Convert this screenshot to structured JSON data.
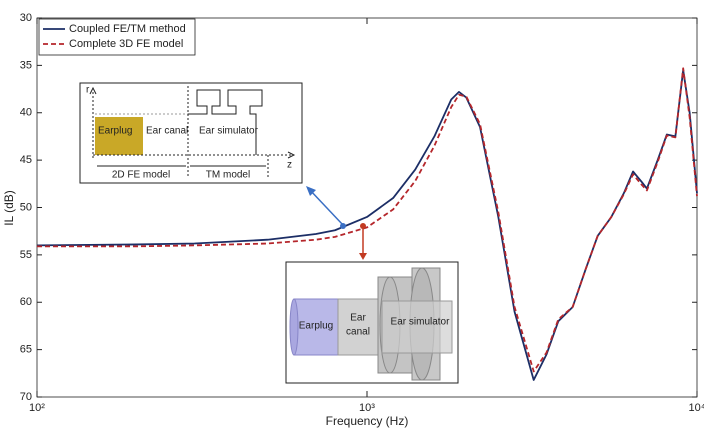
{
  "chart_data": {
    "type": "line",
    "xlabel": "Frequency (Hz)",
    "ylabel": "IL (dB)",
    "x_log": true,
    "y_reversed": true,
    "xlim": [
      100,
      10000
    ],
    "xticks": [
      {
        "value": 100,
        "label": "10²"
      },
      {
        "value": 1000,
        "label": "10³"
      },
      {
        "value": 10000,
        "label": "10⁴"
      }
    ],
    "ylim": [
      30,
      70
    ],
    "yticks": [
      30,
      35,
      40,
      45,
      50,
      55,
      60,
      65,
      70
    ],
    "legend": "upper left",
    "x": [
      100,
      200,
      300,
      500,
      700,
      800,
      1000,
      1200,
      1400,
      1600,
      1800,
      1900,
      2000,
      2200,
      2500,
      2800,
      3200,
      3500,
      3800,
      4200,
      4600,
      5000,
      5500,
      6000,
      6400,
      6800,
      7050,
      7600,
      8100,
      8600,
      9080,
      9500,
      10000
    ],
    "series": [
      {
        "name": "Coupled FE/TM method",
        "color": "#1c2e66",
        "dash": false,
        "values": [
          54,
          53.9,
          53.8,
          53.4,
          52.8,
          52.4,
          51,
          49,
          46,
          42.5,
          38.6,
          37.8,
          38.4,
          41.5,
          51,
          61,
          68.2,
          65.5,
          62,
          60.5,
          56.5,
          53,
          51,
          48.5,
          46.2,
          47.3,
          48,
          45,
          42.3,
          42.5,
          35.5,
          40,
          48.5
        ]
      },
      {
        "name": "Complete 3D FE model",
        "color": "#b5262b",
        "dash": true,
        "values": [
          54.1,
          54.1,
          54,
          53.8,
          53.4,
          53.1,
          52.1,
          50.2,
          47.2,
          43.5,
          39.4,
          38.1,
          38.3,
          41.2,
          50.5,
          60.5,
          67.3,
          65.3,
          61.8,
          60.5,
          56.5,
          53,
          51,
          48.6,
          46.5,
          47.6,
          48.2,
          45.2,
          42.4,
          42.6,
          35.3,
          40.5,
          48.8
        ]
      }
    ],
    "inset_a": {
      "r_label": "r",
      "z_label": "z",
      "earplug": "Earplug",
      "ear_canal": "Ear canal",
      "ear_simulator": "Ear simulator",
      "fe_model": "2D FE model",
      "tm_model": "TM model"
    },
    "inset_b": {
      "earplug": "Earplug",
      "ear_canal": [
        "Ear",
        "canal"
      ],
      "ear_simulator": "Ear simulator"
    }
  }
}
